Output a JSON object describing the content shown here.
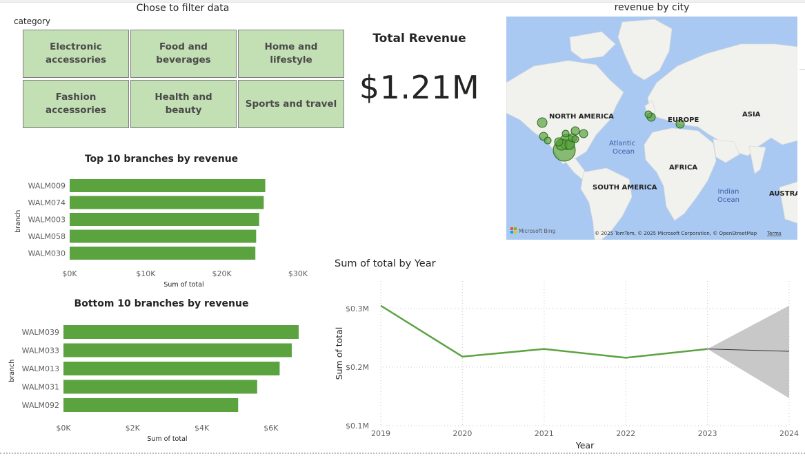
{
  "slicer": {
    "title": "Chose to filter data",
    "field_label": "category",
    "tiles": [
      "Electronic accessories",
      "Food and beverages",
      "Home and lifestyle",
      "Fashion accessories",
      "Health and beauty",
      "Sports and travel"
    ]
  },
  "kpi": {
    "label": "Total Revenue",
    "value": "$1.21M"
  },
  "map": {
    "title": "revenue by city",
    "labels": {
      "north_america": "NORTH AMERICA",
      "europe": "EUROPE",
      "asia": "ASIA",
      "africa": "AFRICA",
      "south_america": "SOUTH AMERICA",
      "atlantic": "Atlantic",
      "ocean": "Ocean",
      "indian": "Indian",
      "australia": "AUSTRAL"
    },
    "logo": "Microsoft Bing",
    "attribution": "© 2025 TomTom, © 2025 Microsoft Corporation, © OpenStreetMap",
    "terms": "Terms",
    "colors": {
      "water": "#a9c9f2",
      "land": "#f1f1ee",
      "bubble": "#5aa33f"
    }
  },
  "chart_data": [
    {
      "type": "bar",
      "orientation": "horizontal",
      "title": "Top 10 branches by revenue",
      "xlabel": "Sum of total",
      "ylabel": "branch",
      "categories": [
        "WALM009",
        "WALM074",
        "WALM003",
        "WALM058",
        "WALM030"
      ],
      "values": [
        25700,
        25500,
        24900,
        24500,
        24400
      ],
      "xlim": [
        0,
        30000
      ],
      "ticks": [
        "$0K",
        "$10K",
        "$20K",
        "$30K"
      ],
      "tick_values": [
        0,
        10000,
        20000,
        30000
      ],
      "color": "#5aa33f"
    },
    {
      "type": "bar",
      "orientation": "horizontal",
      "title": "Bottom 10 branches by revenue",
      "xlabel": "Sum of total",
      "ylabel": "branch",
      "categories": [
        "WALM039",
        "WALM033",
        "WALM013",
        "WALM031",
        "WALM092"
      ],
      "values": [
        6800,
        6600,
        6250,
        5600,
        5050
      ],
      "xlim": [
        0,
        6800
      ],
      "ticks": [
        "$0K",
        "$2K",
        "$4K",
        "$6K"
      ],
      "tick_values": [
        0,
        2000,
        4000,
        6000
      ],
      "color": "#5aa33f"
    },
    {
      "type": "line",
      "title": "Sum of total by Year",
      "xlabel": "Year",
      "ylabel": "Sum of total",
      "x": [
        "2019",
        "2020",
        "2021",
        "2022",
        "2023",
        "2024"
      ],
      "series": [
        {
          "values": [
            0.305,
            0.218,
            0.231,
            0.216,
            0.231,
            null
          ],
          "color": "#5aa33f"
        }
      ],
      "forecast": {
        "from": "2023",
        "to": "2024",
        "value": 0.227,
        "upper": 0.305,
        "lower": 0.147
      },
      "ylim": [
        0.1,
        0.3
      ],
      "ticks": [
        "$0.1M",
        "$0.2M",
        "$0.3M"
      ],
      "tick_values": [
        0.1,
        0.2,
        0.3
      ],
      "grid": true
    }
  ]
}
